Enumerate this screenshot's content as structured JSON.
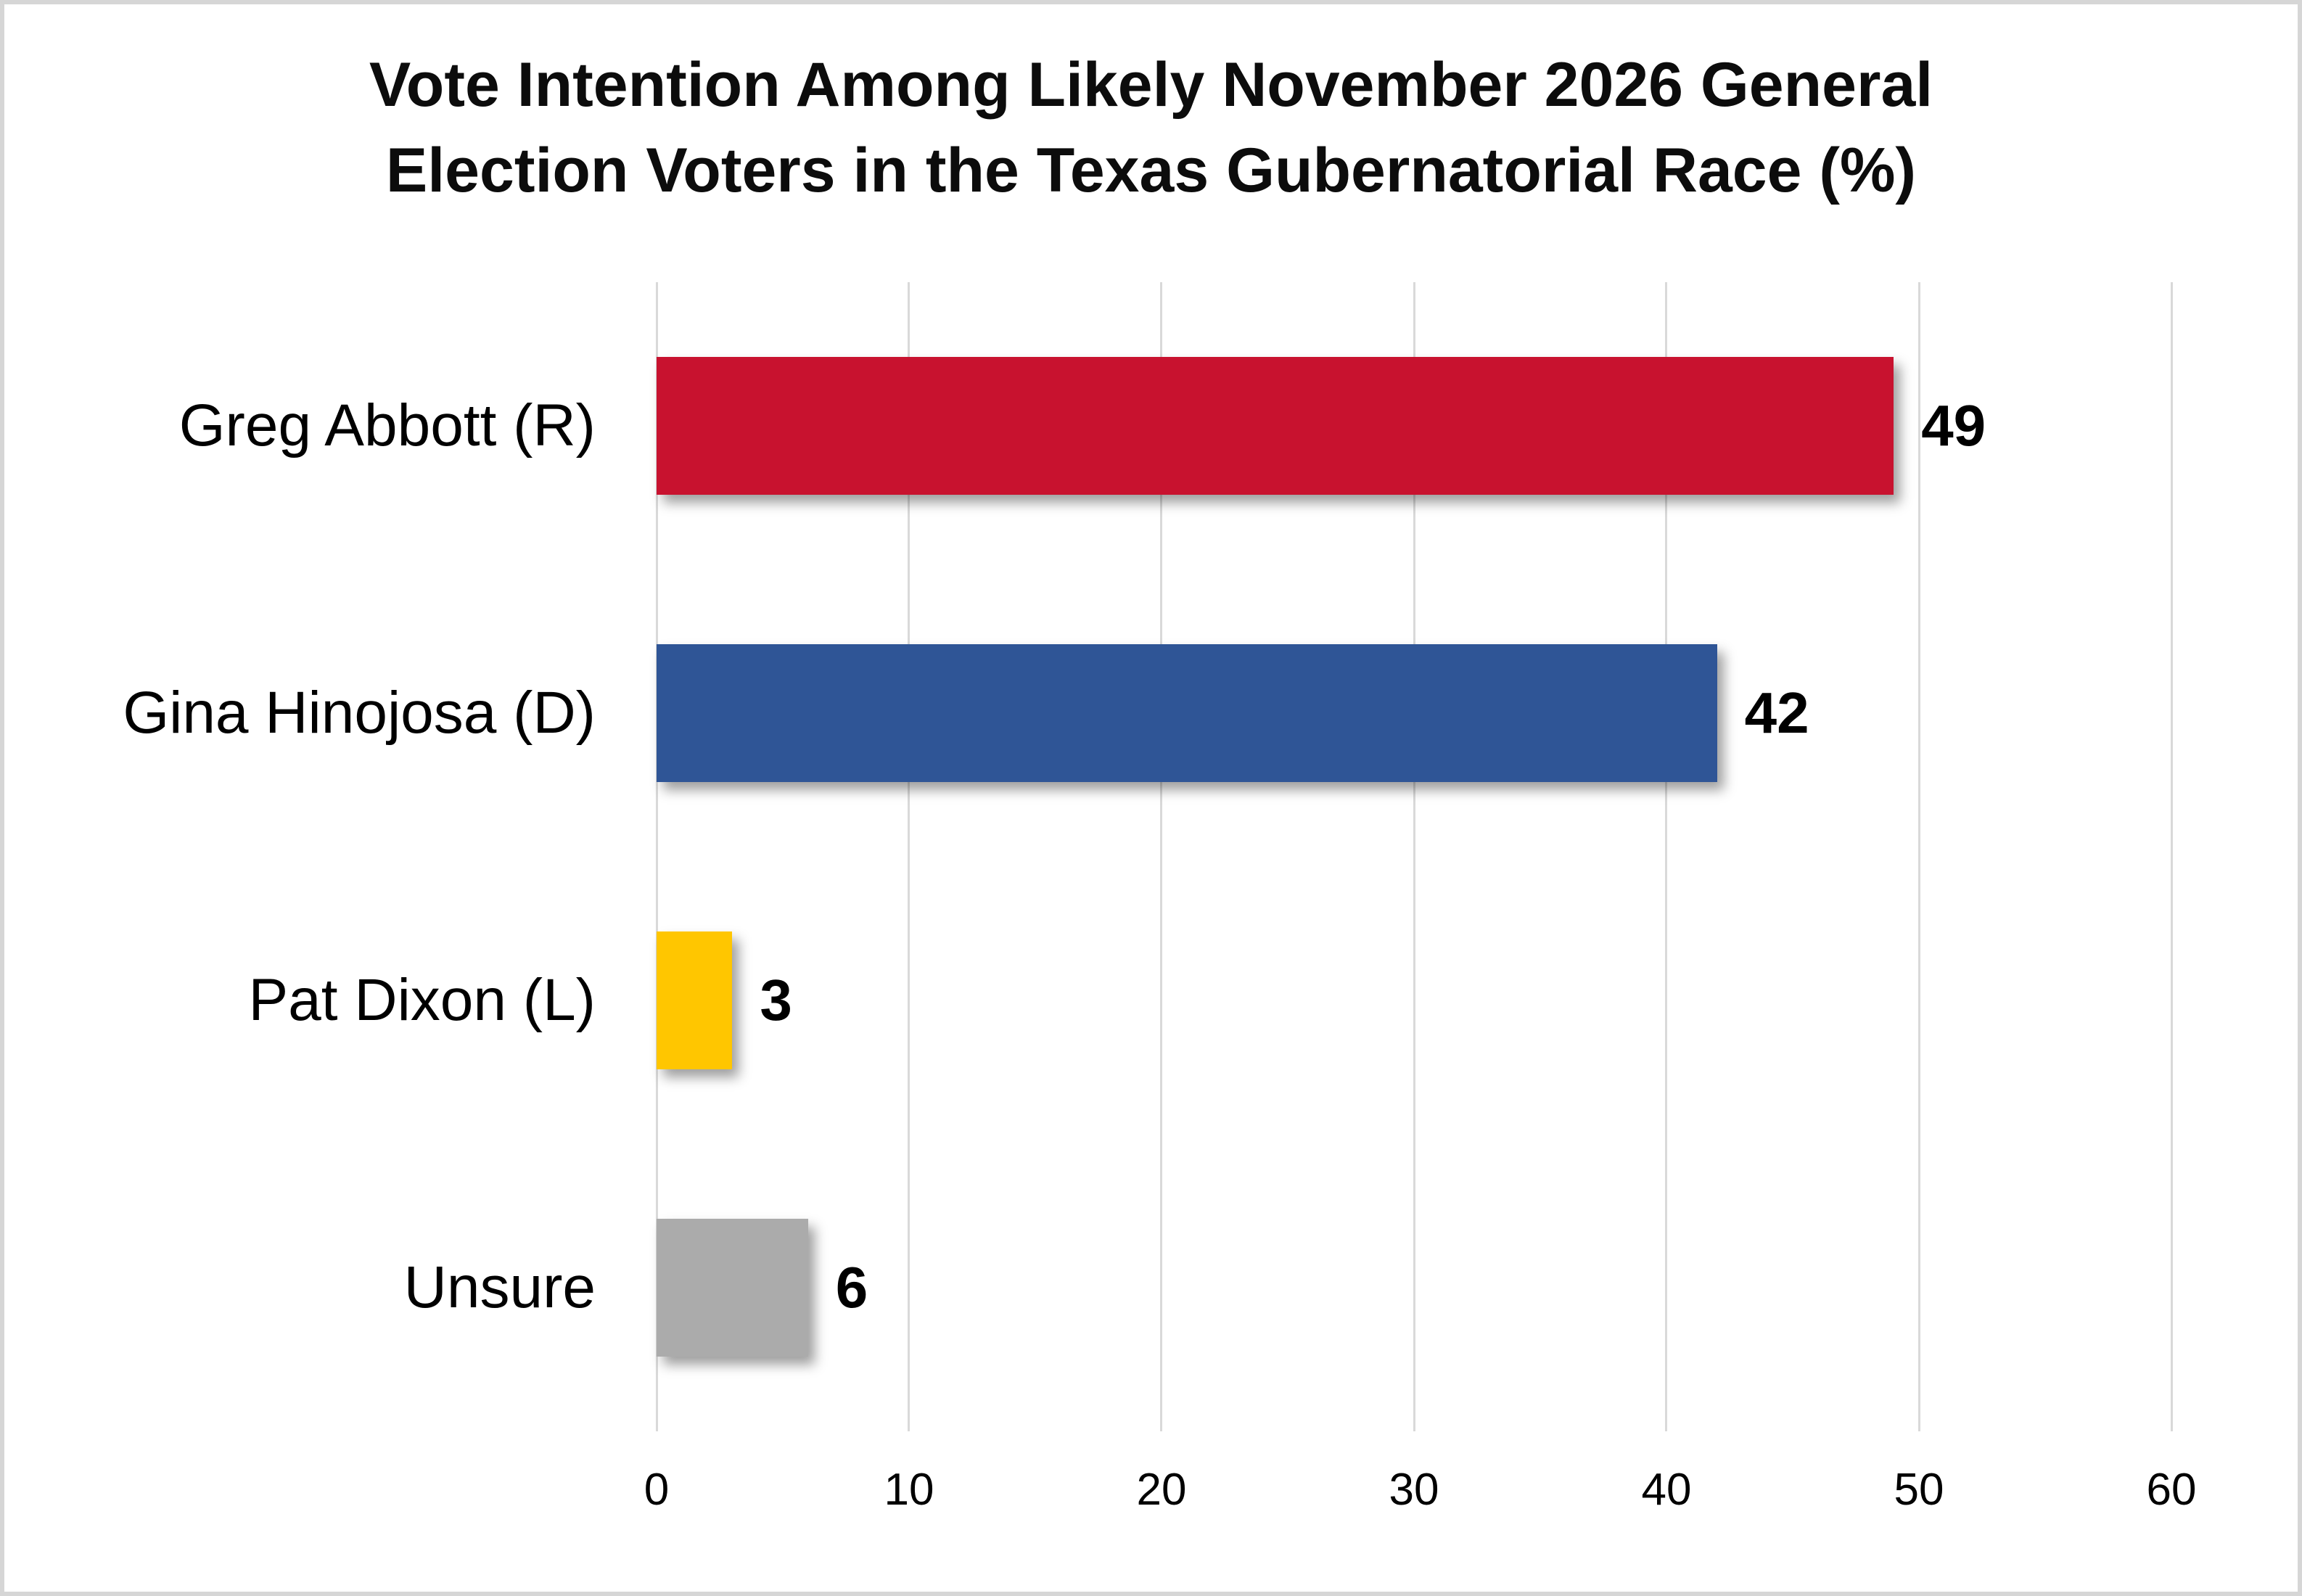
{
  "title": {
    "line1": "Vote Intention Among Likely November 2026 General",
    "line2": "Election Voters in the Texas Gubernatorial Race (%)"
  },
  "chart_data": {
    "type": "bar",
    "orientation": "horizontal",
    "title": "Vote Intention Among Likely November 2026 General Election Voters in the Texas Gubernatorial Race (%)",
    "categories": [
      "Greg Abbott (R)",
      "Gina Hinojosa (D)",
      "Pat Dixon (L)",
      "Unsure"
    ],
    "values": [
      49,
      42,
      3,
      6
    ],
    "data_labels": [
      "49",
      "42",
      "3",
      "6"
    ],
    "bar_colors": [
      "#C8122F",
      "#2F5596",
      "#FFC600",
      "#ABABAB"
    ],
    "xlabel": "",
    "ylabel": "",
    "xlim": [
      0,
      60
    ],
    "x_ticks": [
      0,
      10,
      20,
      30,
      40,
      50,
      60
    ],
    "grid": "vertical-only",
    "gridline_color": "#D9D9D9",
    "legend": "none",
    "value_label_position": "outside-end"
  },
  "styles": {
    "background_color": "#FFFFFF",
    "frame_border_color": "#D6D6D6",
    "text_color": "#000000"
  }
}
